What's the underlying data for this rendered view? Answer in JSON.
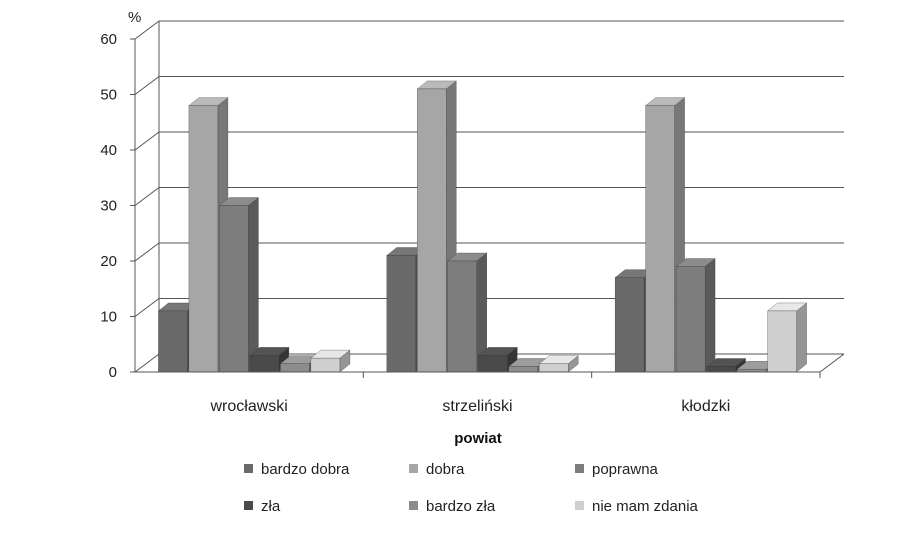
{
  "chart_data": {
    "type": "bar",
    "style": "3d-clustered-column",
    "categories": [
      "wrocławski",
      "strzeliński",
      "kłodzki"
    ],
    "series": [
      {
        "name": "bardzo dobra",
        "values": [
          11,
          21,
          17
        ],
        "color": "#6a6a6a"
      },
      {
        "name": "dobra",
        "values": [
          48,
          51,
          48
        ],
        "color": "#a6a6a6"
      },
      {
        "name": "poprawna",
        "values": [
          30,
          20,
          19
        ],
        "color": "#7d7d7d"
      },
      {
        "name": "zła",
        "values": [
          3,
          3,
          1
        ],
        "color": "#4a4a4a"
      },
      {
        "name": "bardzo zła",
        "values": [
          1.5,
          1,
          0.5
        ],
        "color": "#8c8c8c"
      },
      {
        "name": "nie mam zdania",
        "values": [
          2.5,
          1.5,
          11
        ],
        "color": "#cfcfcf"
      }
    ],
    "y_unit": "%",
    "xlabel": "powiat",
    "ylim": [
      0,
      60
    ],
    "yticks": [
      "0",
      "10",
      "20",
      "30",
      "40",
      "50",
      "60"
    ],
    "grid": true,
    "legend_position": "bottom"
  }
}
